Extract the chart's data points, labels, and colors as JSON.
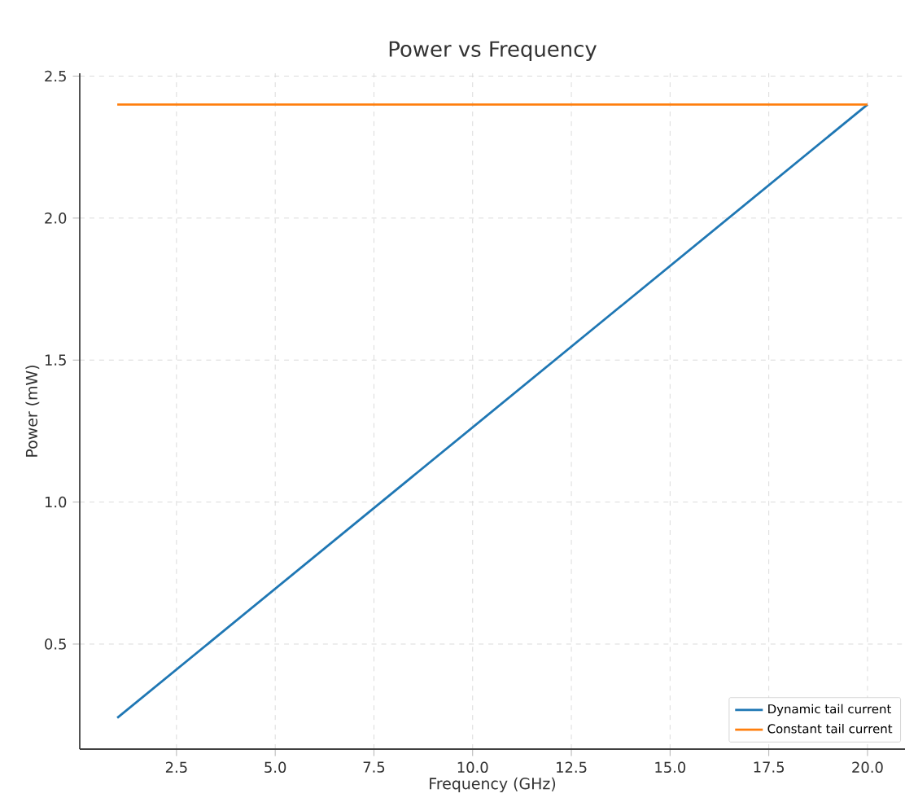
{
  "chart_data": {
    "type": "line",
    "title": "Power vs Frequency",
    "xlabel": "Frequency (GHz)",
    "ylabel": "Power (mW)",
    "x": [
      1,
      20
    ],
    "series": [
      {
        "name": "Dynamic tail current",
        "color": "#1f77b4",
        "values": [
          0.24,
          2.4
        ]
      },
      {
        "name": "Constant tail current",
        "color": "#ff7f0e",
        "values": [
          2.4,
          2.4
        ]
      }
    ],
    "xlim": [
      0.05,
      20.95
    ],
    "ylim": [
      0.13,
      2.51
    ],
    "xticks": [
      {
        "value": 2.5,
        "label": "2.5"
      },
      {
        "value": 5,
        "label": "5.0"
      },
      {
        "value": 7.5,
        "label": "7.5"
      },
      {
        "value": 10,
        "label": "10.0"
      },
      {
        "value": 12.5,
        "label": "12.5"
      },
      {
        "value": 15,
        "label": "15.0"
      },
      {
        "value": 17.5,
        "label": "17.5"
      },
      {
        "value": 20,
        "label": "20.0"
      }
    ],
    "yticks": [
      {
        "value": 0.5,
        "label": "0.5"
      },
      {
        "value": 1,
        "label": "1.0"
      },
      {
        "value": 1.5,
        "label": "1.5"
      },
      {
        "value": 2,
        "label": "2.0"
      },
      {
        "value": 2.5,
        "label": "2.5"
      }
    ],
    "grid": true,
    "legend": "bottom right",
    "line_style": "solid",
    "marker": "none"
  }
}
